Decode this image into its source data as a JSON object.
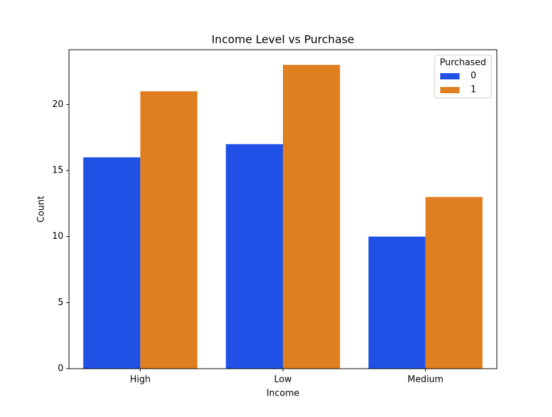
{
  "chart_data": {
    "type": "bar",
    "title": "Income Level vs Purchase",
    "x_label": "Income",
    "y_label": "Count",
    "categories": [
      "High",
      "Low",
      "Medium"
    ],
    "series": [
      {
        "name": "0",
        "color": "#2150e6",
        "values": [
          16,
          17,
          10
        ]
      },
      {
        "name": "1",
        "color": "#e07f20",
        "values": [
          21,
          23,
          13
        ]
      }
    ],
    "legend_title": "Purchased",
    "legend_position": "upper right",
    "ylim": [
      0,
      24.15
    ],
    "yticks": [
      0,
      5,
      10,
      15,
      20
    ],
    "grid": false
  }
}
